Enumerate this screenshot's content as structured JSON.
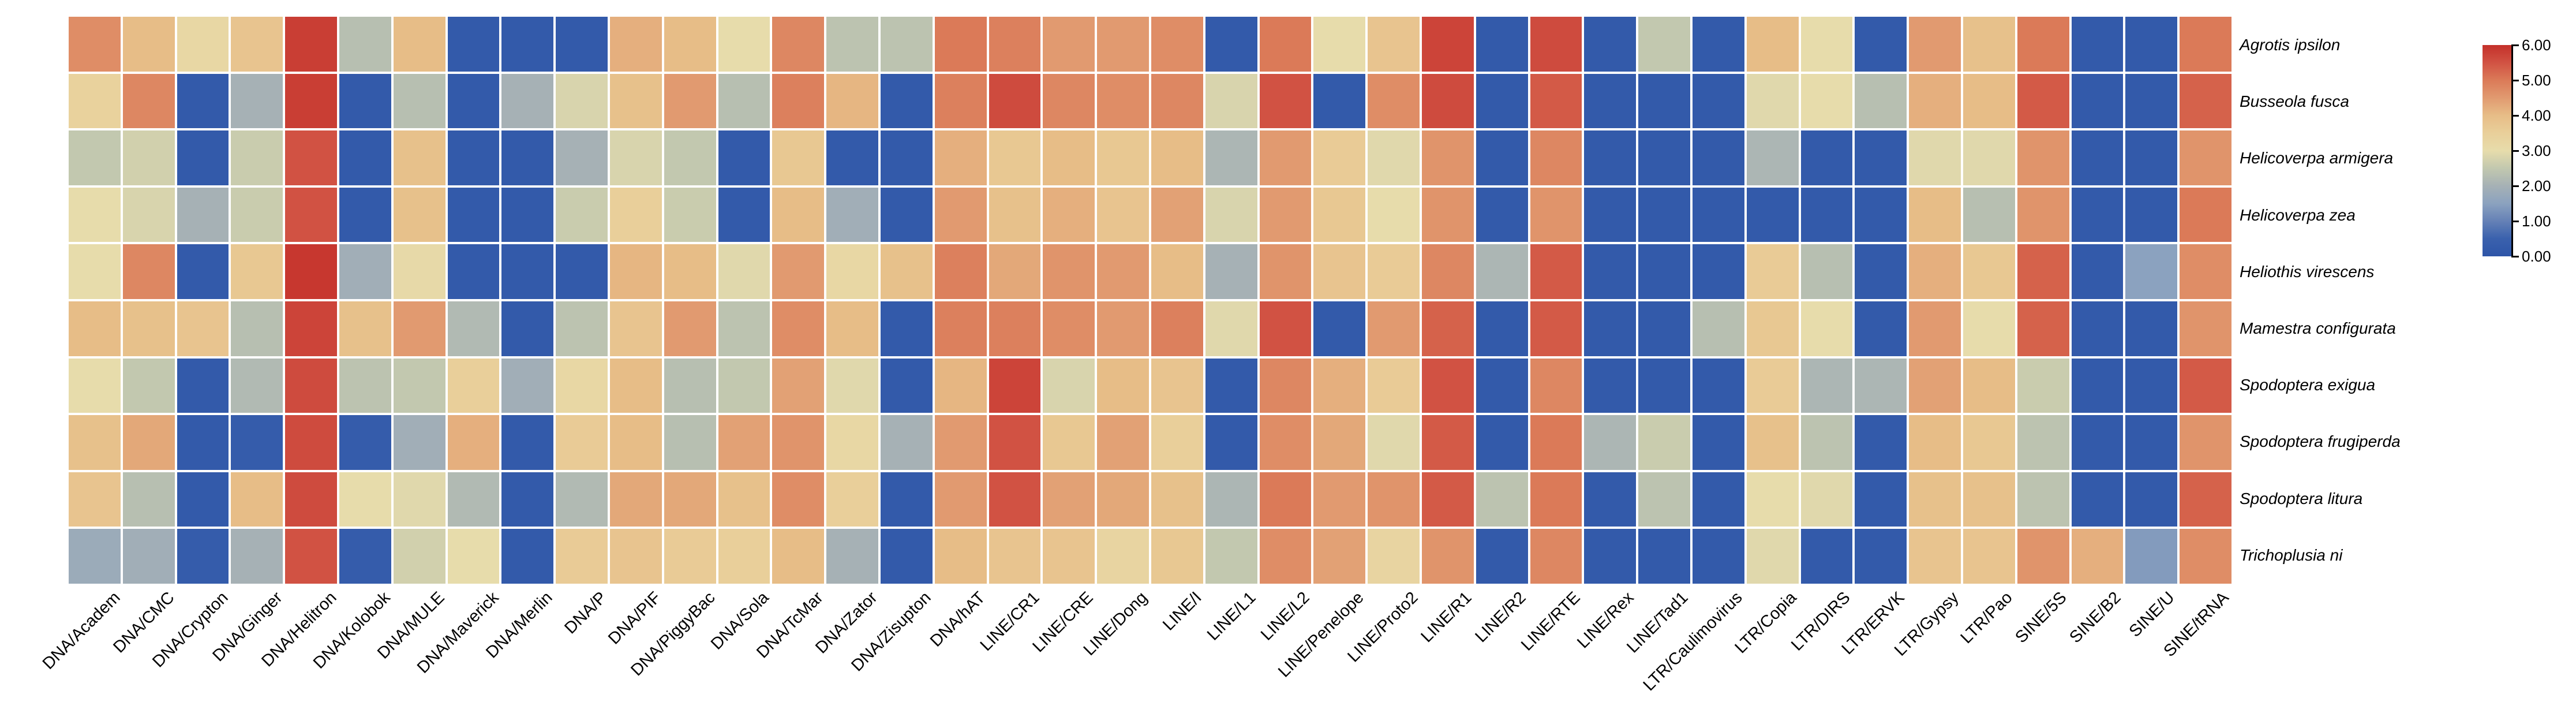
{
  "chart_data": {
    "type": "heatmap",
    "title": "",
    "xlabel": "",
    "ylabel": "",
    "legend_position": "right",
    "grid": "white gaps between cells",
    "rows": [
      "Agrotis ipsilon",
      "Busseola fusca",
      "Helicoverpa armigera",
      "Helicoverpa zea",
      "Heliothis virescens",
      "Mamestra configurata",
      "Spodoptera exigua",
      "Spodoptera frugiperda",
      "Spodoptera litura",
      "Trichoplusia ni"
    ],
    "columns": [
      "DNA/Academ",
      "DNA/CMC",
      "DNA/Crypton",
      "DNA/Ginger",
      "DNA/Helitron",
      "DNA/Kolobok",
      "DNA/MULE",
      "DNA/Maverick",
      "DNA/Merlin",
      "DNA/P",
      "DNA/PIF",
      "DNA/PiggyBac",
      "DNA/Sola",
      "DNA/TcMar",
      "DNA/Zator",
      "DNA/Zisupton",
      "DNA/hAT",
      "LINE/CR1",
      "LINE/CRE",
      "LINE/Dong",
      "LINE/I",
      "LINE/L1",
      "LINE/L2",
      "LINE/Penelope",
      "LINE/Proto2",
      "LINE/R1",
      "LINE/R2",
      "LINE/RTE",
      "LINE/Rex",
      "LINE/Tad1",
      "LTR/Caulimovirus",
      "LTR/Copia",
      "LTR/DIRS",
      "LTR/ERVK",
      "LTR/Gypsy",
      "LTR/Pao",
      "SINE/5S",
      "SINE/B2",
      "SINE/U",
      "SINE/tRNA"
    ],
    "values": [
      [
        4.7,
        4.0,
        3.2,
        3.8,
        5.8,
        2.3,
        4.0,
        0.2,
        0.2,
        0.2,
        4.2,
        4.0,
        3.0,
        4.8,
        2.4,
        2.4,
        5.0,
        4.9,
        4.5,
        4.5,
        4.7,
        0.2,
        5.0,
        3.0,
        3.8,
        5.7,
        0.2,
        5.6,
        0.2,
        2.5,
        0.2,
        4.0,
        3.0,
        0.2,
        4.5,
        3.9,
        5.0,
        0.2,
        0.2,
        5.0
      ],
      [
        3.4,
        4.8,
        0.2,
        2.0,
        5.8,
        0.2,
        2.3,
        0.2,
        2.0,
        2.8,
        3.9,
        4.5,
        2.3,
        4.9,
        4.1,
        0.2,
        4.9,
        5.6,
        4.8,
        4.7,
        4.8,
        2.8,
        5.5,
        0.2,
        4.7,
        5.6,
        0.2,
        5.4,
        0.2,
        0.2,
        0.2,
        2.9,
        3.0,
        2.3,
        4.2,
        4.0,
        5.4,
        0.2,
        0.2,
        5.3
      ],
      [
        2.5,
        2.7,
        0.2,
        2.6,
        5.5,
        0.2,
        3.9,
        0.2,
        0.2,
        2.0,
        2.8,
        2.5,
        0.2,
        3.7,
        0.2,
        0.2,
        4.2,
        3.7,
        4.0,
        3.7,
        4.0,
        2.1,
        4.5,
        3.6,
        2.9,
        4.6,
        0.2,
        4.8,
        0.2,
        0.2,
        0.2,
        2.1,
        0.2,
        0.2,
        2.9,
        2.9,
        4.6,
        0.2,
        0.2,
        4.6
      ],
      [
        3.0,
        2.8,
        2.0,
        2.6,
        5.5,
        0.2,
        3.9,
        0.2,
        0.2,
        2.6,
        3.5,
        2.6,
        0.2,
        4.0,
        1.9,
        0.2,
        4.5,
        3.9,
        4.2,
        3.8,
        4.4,
        2.8,
        4.5,
        3.7,
        3.0,
        4.6,
        0.2,
        4.6,
        0.2,
        0.2,
        0.2,
        0.2,
        0.2,
        0.2,
        4.0,
        2.3,
        4.6,
        0.2,
        0.2,
        5.0
      ],
      [
        3.0,
        4.8,
        0.2,
        3.7,
        5.9,
        1.9,
        3.1,
        0.2,
        0.2,
        0.2,
        4.1,
        4.0,
        2.9,
        4.5,
        3.2,
        3.9,
        4.9,
        4.3,
        4.6,
        4.5,
        4.0,
        2.0,
        4.6,
        3.8,
        3.6,
        4.8,
        2.1,
        5.4,
        0.2,
        0.2,
        0.2,
        3.6,
        2.3,
        0.2,
        4.2,
        3.7,
        5.3,
        0.2,
        1.5,
        4.7
      ],
      [
        4.0,
        3.9,
        3.8,
        2.3,
        5.7,
        3.9,
        4.5,
        2.2,
        0.2,
        2.4,
        3.8,
        4.5,
        2.4,
        4.7,
        4.0,
        0.2,
        4.9,
        4.9,
        4.7,
        4.5,
        4.9,
        2.9,
        5.5,
        0.2,
        4.5,
        5.3,
        0.2,
        5.4,
        0.2,
        0.2,
        2.3,
        3.7,
        3.0,
        0.2,
        4.5,
        3.0,
        5.3,
        0.2,
        0.2,
        4.6
      ],
      [
        3.0,
        2.5,
        0.2,
        2.2,
        5.6,
        2.4,
        2.5,
        3.5,
        1.9,
        3.2,
        4.0,
        2.3,
        2.5,
        4.4,
        2.9,
        0.2,
        4.1,
        5.7,
        2.8,
        4.0,
        3.8,
        0.2,
        4.8,
        4.2,
        3.6,
        5.5,
        0.2,
        4.8,
        0.2,
        0.2,
        0.2,
        3.6,
        2.1,
        2.1,
        4.4,
        4.0,
        2.6,
        0.2,
        0.2,
        5.4
      ],
      [
        3.9,
        4.3,
        0.2,
        0.3,
        5.6,
        0.3,
        1.9,
        4.2,
        0.2,
        3.6,
        4.0,
        2.3,
        4.4,
        4.6,
        3.2,
        2.0,
        4.5,
        5.5,
        3.7,
        4.4,
        3.5,
        0.2,
        4.7,
        4.3,
        2.9,
        5.4,
        0.2,
        5.0,
        2.1,
        2.6,
        0.2,
        3.9,
        2.4,
        0.2,
        4.0,
        3.7,
        2.4,
        0.2,
        0.2,
        4.6
      ],
      [
        3.8,
        2.3,
        0.2,
        4.0,
        5.6,
        3.0,
        2.9,
        2.2,
        0.2,
        2.2,
        4.3,
        4.3,
        3.9,
        4.7,
        3.5,
        0.2,
        4.5,
        5.5,
        4.4,
        4.3,
        3.9,
        2.1,
        5.0,
        4.5,
        4.6,
        5.4,
        2.4,
        5.0,
        0.2,
        2.4,
        0.2,
        3.0,
        2.9,
        0.2,
        3.9,
        3.9,
        2.4,
        0.2,
        0.2,
        5.3
      ],
      [
        1.8,
        1.9,
        0.3,
        2.0,
        5.5,
        0.3,
        2.7,
        3.0,
        0.2,
        3.6,
        3.8,
        3.6,
        3.5,
        4.0,
        2.0,
        0.2,
        4.0,
        3.8,
        3.8,
        3.3,
        3.7,
        2.5,
        4.7,
        4.4,
        3.3,
        4.6,
        0.2,
        4.8,
        0.2,
        0.2,
        0.2,
        2.9,
        0.2,
        0.2,
        3.8,
        3.8,
        4.6,
        4.2,
        1.4,
        4.7
      ]
    ],
    "value_range": [
      0,
      6
    ],
    "colorbar": {
      "tick_labels": [
        "6.00",
        "5.00",
        "4.00",
        "3.00",
        "2.00",
        "1.00",
        "0.00"
      ],
      "tick_values": [
        6,
        5,
        4,
        3,
        2,
        1,
        0
      ]
    },
    "palette_anchors": [
      [
        0.0,
        "#2e55a8"
      ],
      [
        0.5,
        "#3a61ad"
      ],
      [
        1.0,
        "#6581b6"
      ],
      [
        1.5,
        "#8ba2bf"
      ],
      [
        2.0,
        "#a6b1b5"
      ],
      [
        2.5,
        "#c2c8af"
      ],
      [
        3.0,
        "#e7dcab"
      ],
      [
        3.5,
        "#e9cf9a"
      ],
      [
        4.0,
        "#e7bd87"
      ],
      [
        4.5,
        "#e19a70"
      ],
      [
        5.0,
        "#db7a58"
      ],
      [
        5.5,
        "#d15243"
      ],
      [
        6.0,
        "#c4302a"
      ]
    ]
  },
  "layout_values": {
    "note": ""
  }
}
